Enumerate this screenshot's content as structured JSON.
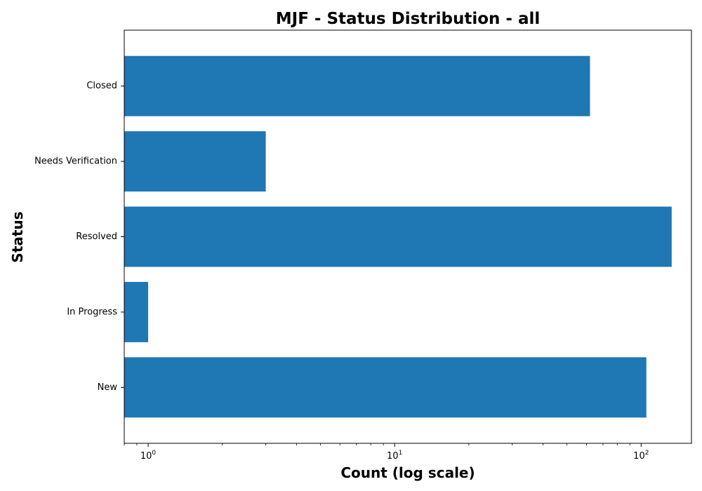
{
  "chart_data": {
    "type": "bar",
    "orientation": "horizontal",
    "title": "MJF - Status Distribution - all",
    "xlabel": "Count (log scale)",
    "ylabel": "Status",
    "x_scale": "log",
    "xlim": [
      0.8,
      160
    ],
    "x_major_ticks": [
      {
        "base": "10",
        "exp": "0",
        "value": 1
      },
      {
        "base": "10",
        "exp": "1",
        "value": 10
      },
      {
        "base": "10",
        "exp": "2",
        "value": 100
      }
    ],
    "categories": [
      "New",
      "In Progress",
      "Resolved",
      "Needs Verification",
      "Closed"
    ],
    "values": [
      105,
      1,
      133,
      3,
      62
    ],
    "bar_color": "#1f77b4",
    "grid": false,
    "legend": false
  }
}
